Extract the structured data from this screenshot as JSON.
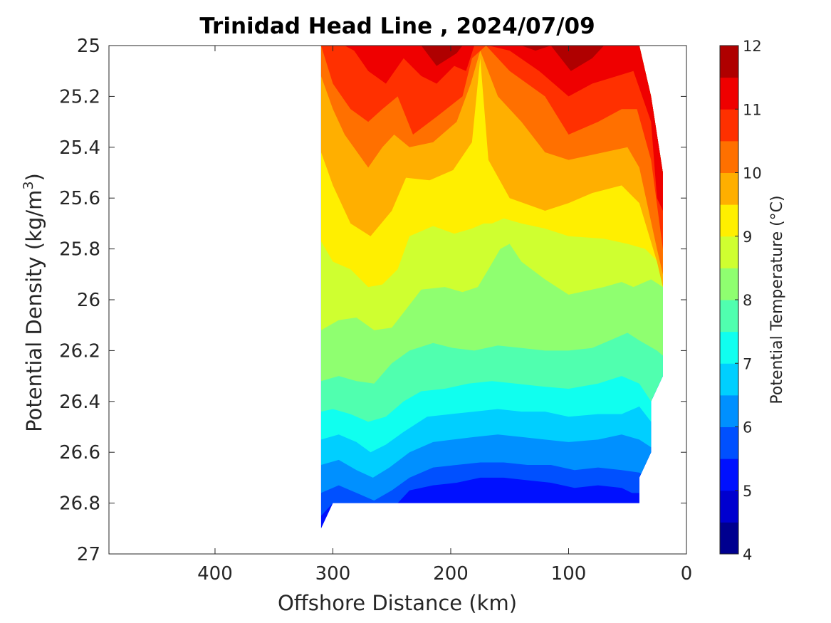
{
  "chart_data": {
    "type": "heatmap",
    "title": "Trinidad Head Line , 2024/07/09",
    "xlabel": "Offshore Distance (km)",
    "ylabel_base": "Potential Density (kg/m",
    "ylabel_sup": "3",
    "ylabel_end": ")",
    "colorbar_label": "Potential Temperature (°C)",
    "xlim": [
      490,
      0
    ],
    "ylim": [
      25,
      27
    ],
    "x_reversed": true,
    "y_reversed": true,
    "xticks": [
      400,
      300,
      200,
      100,
      0
    ],
    "yticks": [
      25,
      25.2,
      25.4,
      25.6,
      25.8,
      26,
      26.2,
      26.4,
      26.6,
      26.8,
      27
    ],
    "ytick_labels": [
      "25",
      "25.2",
      "25.4",
      "25.6",
      "25.8",
      "26",
      "26.2",
      "26.4",
      "26.6",
      "26.8",
      "27"
    ],
    "colorbar_range": [
      4,
      12
    ],
    "colorbar_ticks": [
      4,
      5,
      6,
      7,
      8,
      9,
      10,
      11,
      12
    ],
    "contour_levels": [
      4,
      4.5,
      5,
      5.5,
      6,
      6.5,
      7,
      7.5,
      8,
      8.5,
      9,
      9.5,
      10,
      10.5,
      11,
      11.5,
      12
    ],
    "colormap": [
      "#00008f",
      "#0000cf",
      "#0010ff",
      "#0050ff",
      "#0090ff",
      "#00cfff",
      "#10ffef",
      "#50ffaf",
      "#8fff70",
      "#cfff30",
      "#ffef00",
      "#ffaf00",
      "#ff7000",
      "#ff3000",
      "#ef0000",
      "#af0000"
    ],
    "data_extent": {
      "top": [
        [
          310,
          25
        ],
        [
          40,
          25
        ],
        [
          30,
          25.2
        ],
        [
          20,
          25.5
        ],
        [
          20,
          26.3
        ],
        [
          30,
          26.4
        ],
        [
          30,
          26.6
        ],
        [
          40,
          26.7
        ],
        [
          40,
          26.8
        ],
        [
          300,
          26.8
        ],
        [
          310,
          26.9
        ],
        [
          310,
          25
        ]
      ]
    },
    "isotherms": [
      {
        "level": 12,
        "points": [
          [
            140,
            25
          ],
          [
            128,
            25.02
          ],
          [
            115,
            25
          ],
          [
            98,
            25.1
          ],
          [
            80,
            25.02
          ],
          [
            70,
            25
          ]
        ]
      },
      {
        "level": 11.5,
        "points": [
          [
            225,
            25
          ],
          [
            212,
            25.08
          ],
          [
            195,
            25.03
          ],
          [
            190,
            25
          ],
          [
            175,
            25
          ],
          [
            115,
            25
          ],
          [
            98,
            25.1
          ],
          [
            80,
            25.05
          ],
          [
            70,
            25
          ],
          [
            40,
            25
          ],
          [
            30,
            25.2
          ],
          [
            20,
            25.5
          ],
          [
            20,
            25.55
          ]
        ]
      },
      {
        "level": 11,
        "points": [
          [
            290,
            25
          ],
          [
            282,
            25.02
          ],
          [
            270,
            25.1
          ],
          [
            255,
            25.15
          ],
          [
            240,
            25.05
          ],
          [
            225,
            25.12
          ],
          [
            212,
            25.15
          ],
          [
            197,
            25.08
          ],
          [
            187,
            25.1
          ],
          [
            180,
            25
          ],
          [
            168,
            25
          ],
          [
            150,
            25.02
          ],
          [
            125,
            25.1
          ],
          [
            100,
            25.2
          ],
          [
            80,
            25.15
          ],
          [
            45,
            25.1
          ],
          [
            30,
            25.3
          ],
          [
            25,
            25.6
          ],
          [
            20,
            25.65
          ]
        ]
      },
      {
        "level": 10.5,
        "points": [
          [
            310,
            25
          ],
          [
            300,
            25.15
          ],
          [
            285,
            25.25
          ],
          [
            270,
            25.3
          ],
          [
            258,
            25.25
          ],
          [
            245,
            25.2
          ],
          [
            232,
            25.35
          ],
          [
            212,
            25.28
          ],
          [
            190,
            25.2
          ],
          [
            182,
            25.05
          ],
          [
            170,
            25
          ],
          [
            150,
            25.1
          ],
          [
            120,
            25.2
          ],
          [
            100,
            25.35
          ],
          [
            75,
            25.3
          ],
          [
            55,
            25.25
          ],
          [
            42,
            25.25
          ],
          [
            30,
            25.45
          ],
          [
            20,
            25.8
          ]
        ]
      },
      {
        "level": 10,
        "points": [
          [
            310,
            25.12
          ],
          [
            300,
            25.25
          ],
          [
            290,
            25.35
          ],
          [
            270,
            25.48
          ],
          [
            258,
            25.4
          ],
          [
            248,
            25.35
          ],
          [
            235,
            25.4
          ],
          [
            215,
            25.38
          ],
          [
            195,
            25.3
          ],
          [
            183,
            25.15
          ],
          [
            175,
            25.02
          ],
          [
            160,
            25.2
          ],
          [
            140,
            25.3
          ],
          [
            120,
            25.42
          ],
          [
            100,
            25.45
          ],
          [
            70,
            25.42
          ],
          [
            50,
            25.4
          ],
          [
            40,
            25.48
          ],
          [
            25,
            25.8
          ],
          [
            20,
            25.9
          ]
        ]
      },
      {
        "level": 9.5,
        "points": [
          [
            310,
            25.42
          ],
          [
            300,
            25.55
          ],
          [
            285,
            25.7
          ],
          [
            268,
            25.75
          ],
          [
            250,
            25.65
          ],
          [
            238,
            25.52
          ],
          [
            218,
            25.53
          ],
          [
            198,
            25.49
          ],
          [
            182,
            25.38
          ],
          [
            175,
            25.05
          ],
          [
            168,
            25.45
          ],
          [
            150,
            25.6
          ],
          [
            120,
            25.65
          ],
          [
            100,
            25.62
          ],
          [
            80,
            25.58
          ],
          [
            55,
            25.55
          ],
          [
            40,
            25.62
          ],
          [
            25,
            25.85
          ],
          [
            20,
            25.95
          ]
        ]
      },
      {
        "level": 9,
        "points": [
          [
            310,
            25.77
          ],
          [
            300,
            25.85
          ],
          [
            285,
            25.88
          ],
          [
            270,
            25.95
          ],
          [
            258,
            25.94
          ],
          [
            245,
            25.88
          ],
          [
            235,
            25.75
          ],
          [
            215,
            25.71
          ],
          [
            197,
            25.74
          ],
          [
            182,
            25.72
          ],
          [
            172,
            25.7
          ],
          [
            165,
            25.7
          ],
          [
            155,
            25.68
          ],
          [
            140,
            25.7
          ],
          [
            120,
            25.72
          ],
          [
            100,
            25.75
          ],
          [
            70,
            25.76
          ],
          [
            50,
            25.78
          ],
          [
            35,
            25.8
          ],
          [
            20,
            25.87
          ]
        ]
      },
      {
        "level": 8.5,
        "points": [
          [
            310,
            26.12
          ],
          [
            295,
            26.08
          ],
          [
            280,
            26.07
          ],
          [
            265,
            26.12
          ],
          [
            250,
            26.11
          ],
          [
            240,
            26.05
          ],
          [
            225,
            25.96
          ],
          [
            205,
            25.95
          ],
          [
            190,
            25.97
          ],
          [
            177,
            25.95
          ],
          [
            168,
            25.88
          ],
          [
            158,
            25.8
          ],
          [
            150,
            25.78
          ],
          [
            140,
            25.85
          ],
          [
            120,
            25.92
          ],
          [
            100,
            25.98
          ],
          [
            70,
            25.95
          ],
          [
            55,
            25.93
          ],
          [
            45,
            25.95
          ],
          [
            30,
            25.92
          ],
          [
            20,
            25.95
          ]
        ]
      },
      {
        "level": 8,
        "points": [
          [
            310,
            26.32
          ],
          [
            295,
            26.3
          ],
          [
            280,
            26.32
          ],
          [
            265,
            26.33
          ],
          [
            250,
            26.25
          ],
          [
            235,
            26.2
          ],
          [
            215,
            26.17
          ],
          [
            198,
            26.19
          ],
          [
            180,
            26.2
          ],
          [
            160,
            26.18
          ],
          [
            140,
            26.19
          ],
          [
            120,
            26.2
          ],
          [
            100,
            26.2
          ],
          [
            80,
            26.19
          ],
          [
            65,
            26.16
          ],
          [
            50,
            26.13
          ],
          [
            40,
            26.16
          ],
          [
            25,
            26.2
          ],
          [
            20,
            26.22
          ]
        ]
      },
      {
        "level": 7.5,
        "points": [
          [
            310,
            26.44
          ],
          [
            300,
            26.43
          ],
          [
            285,
            26.45
          ],
          [
            270,
            26.48
          ],
          [
            255,
            26.46
          ],
          [
            240,
            26.4
          ],
          [
            225,
            26.36
          ],
          [
            205,
            26.35
          ],
          [
            185,
            26.33
          ],
          [
            165,
            26.32
          ],
          [
            145,
            26.33
          ],
          [
            125,
            26.34
          ],
          [
            100,
            26.35
          ],
          [
            75,
            26.33
          ],
          [
            55,
            26.3
          ],
          [
            40,
            26.33
          ],
          [
            30,
            26.4
          ]
        ]
      },
      {
        "level": 7,
        "points": [
          [
            310,
            26.55
          ],
          [
            295,
            26.53
          ],
          [
            280,
            26.56
          ],
          [
            268,
            26.6
          ],
          [
            255,
            26.57
          ],
          [
            240,
            26.52
          ],
          [
            220,
            26.46
          ],
          [
            200,
            26.45
          ],
          [
            180,
            26.44
          ],
          [
            160,
            26.43
          ],
          [
            140,
            26.44
          ],
          [
            120,
            26.44
          ],
          [
            100,
            26.46
          ],
          [
            75,
            26.45
          ],
          [
            55,
            26.45
          ],
          [
            40,
            26.42
          ],
          [
            30,
            26.48
          ]
        ]
      },
      {
        "level": 6.5,
        "points": [
          [
            310,
            26.65
          ],
          [
            295,
            26.63
          ],
          [
            280,
            26.67
          ],
          [
            266,
            26.7
          ],
          [
            252,
            26.66
          ],
          [
            235,
            26.6
          ],
          [
            215,
            26.56
          ],
          [
            198,
            26.55
          ],
          [
            180,
            26.54
          ],
          [
            160,
            26.53
          ],
          [
            140,
            26.54
          ],
          [
            120,
            26.55
          ],
          [
            100,
            26.56
          ],
          [
            75,
            26.55
          ],
          [
            55,
            26.53
          ],
          [
            40,
            26.55
          ],
          [
            30,
            26.58
          ]
        ]
      },
      {
        "level": 6,
        "points": [
          [
            310,
            26.76
          ],
          [
            295,
            26.73
          ],
          [
            280,
            26.76
          ],
          [
            265,
            26.79
          ],
          [
            250,
            26.75
          ],
          [
            235,
            26.7
          ],
          [
            215,
            26.66
          ],
          [
            195,
            26.65
          ],
          [
            175,
            26.64
          ],
          [
            155,
            26.64
          ],
          [
            135,
            26.65
          ],
          [
            115,
            26.65
          ],
          [
            95,
            26.67
          ],
          [
            75,
            26.66
          ],
          [
            55,
            26.67
          ],
          [
            40,
            26.68
          ],
          [
            32,
            26.7
          ]
        ]
      },
      {
        "level": 5.5,
        "points": [
          [
            310,
            26.85
          ],
          [
            300,
            26.8
          ],
          [
            245,
            26.8
          ],
          [
            235,
            26.75
          ],
          [
            215,
            26.73
          ],
          [
            195,
            26.72
          ],
          [
            175,
            26.7
          ],
          [
            155,
            26.7
          ],
          [
            135,
            26.71
          ],
          [
            115,
            26.72
          ],
          [
            95,
            26.74
          ],
          [
            75,
            26.73
          ],
          [
            55,
            26.74
          ],
          [
            42,
            26.77
          ],
          [
            40,
            26.8
          ]
        ]
      },
      {
        "level": 5,
        "points": [
          [
            140,
            26.8
          ],
          [
            130,
            26.79
          ],
          [
            125,
            26.8
          ]
        ]
      }
    ]
  }
}
